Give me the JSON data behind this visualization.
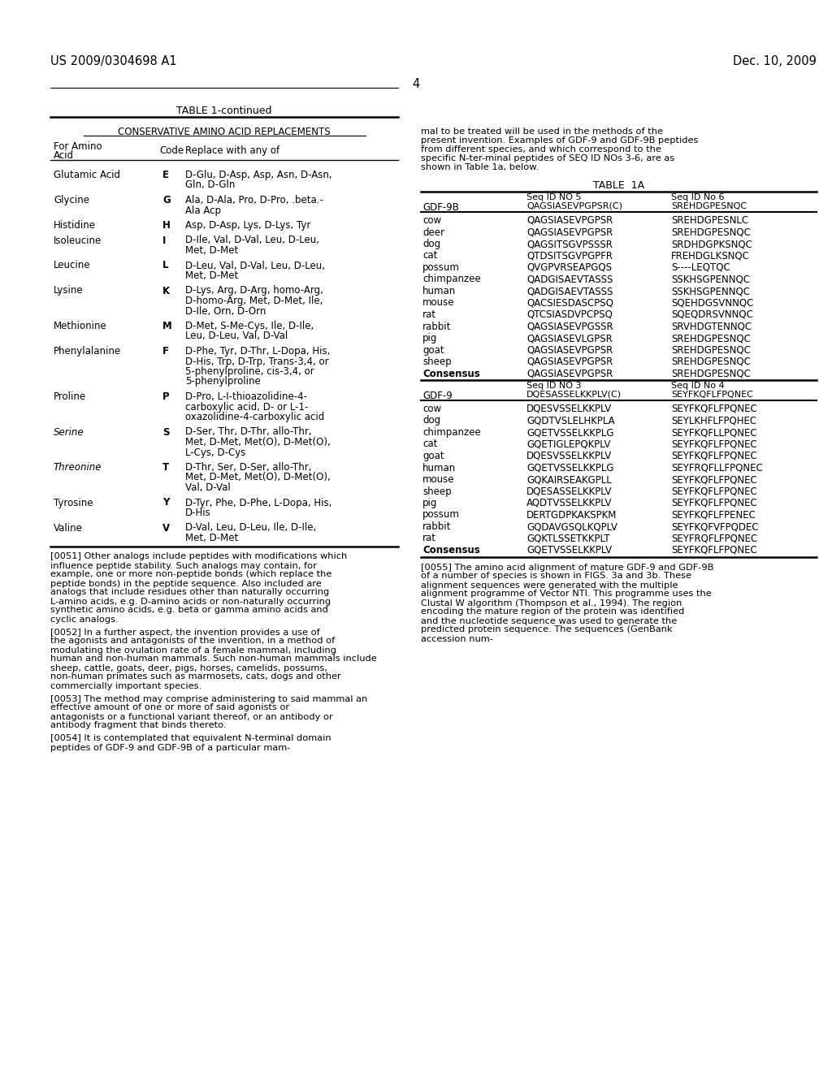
{
  "header_left": "US 2009/0304698 A1",
  "header_right": "Dec. 10, 2009",
  "page_num": "4",
  "bg_color": "#ffffff",
  "table1_title": "TABLE 1-continued",
  "table1_subtitle": "CONSERVATIVE AMINO ACID REPLACEMENTS",
  "table1_rows": [
    [
      "Glutamic Acid",
      "E",
      "D-Glu, D-Asp, Asp, Asn, D-Asn,\nGln, D-Gln"
    ],
    [
      "Glycine",
      "G",
      "Ala, D-Ala, Pro, D-Pro, .beta.-\nAla Acp"
    ],
    [
      "Histidine",
      "H",
      "Asp, D-Asp, Lys, D-Lys, Tyr"
    ],
    [
      "Isoleucine",
      "I",
      "D-Ile, Val, D-Val, Leu, D-Leu,\nMet, D-Met"
    ],
    [
      "Leucine",
      "L",
      "D-Leu, Val, D-Val, Leu, D-Leu,\nMet, D-Met"
    ],
    [
      "Lysine",
      "K",
      "D-Lys, Arg, D-Arg, homo-Arg,\nD-homo-Arg, Met, D-Met, Ile,\nD-Ile, Orn, D-Orn"
    ],
    [
      "Methionine",
      "M",
      "D-Met, S-Me-Cys, Ile, D-Ile,\nLeu, D-Leu, Val, D-Val"
    ],
    [
      "Phenylalanine",
      "F",
      "D-Phe, Tyr, D-Thr, L-Dopa, His,\nD-His, Trp, D-Trp, Trans-3,4, or\n5-phenylproline, cis-3,4, or\n5-phenylproline"
    ],
    [
      "Proline",
      "P",
      "D-Pro, L-I-thioazolidine-4-\ncarboxylic acid, D- or L-1-\noxazolidine-4-carboxylic acid"
    ],
    [
      "Serine",
      "S",
      "D-Ser, Thr, D-Thr, allo-Thr,\nMet, D-Met, Met(O), D-Met(O),\nL-Cys, D-Cys"
    ],
    [
      "Threonine",
      "T",
      "D-Thr, Ser, D-Ser, allo-Thr,\nMet, D-Met, Met(O), D-Met(O),\nVal, D-Val"
    ],
    [
      "Tyrosine",
      "Y",
      "D-Tyr, Phe, D-Phe, L-Dopa, His,\nD-His"
    ],
    [
      "Valine",
      "V",
      "D-Val, Leu, D-Leu, Ile, D-Ile,\nMet, D-Met"
    ]
  ],
  "italic_amino": [
    "Serine",
    "Threonine"
  ],
  "para_0051": "[0051]  Other analogs include peptides with modifications which influence peptide stability. Such analogs may contain, for example, one or more non-peptide bonds (which replace the peptide bonds) in the peptide sequence. Also included are analogs that include residues other than naturally occurring L-amino acids, e.g. D-amino acids or non-naturally occurring synthetic amino acids, e.g. beta or gamma amino acids and cyclic analogs.",
  "para_0052": "[0052]  In a further aspect, the invention provides a use of the agonists and antagonists of the invention, in a method of modulating the ovulation rate of a female mammal, including human and non-human mammals. Such non-human mammals include sheep, cattle, goats, deer, pigs, horses, camelids, possums, non-human primates such as marmosets, cats, dogs and other commercially important species.",
  "para_0053": "[0053]  The method may comprise administering to said mammal an effective amount of one or more of said agonists or antagonists or a functional variant thereof, or an antibody or antibody fragment that binds thereto.",
  "para_0054": "[0054]  It is contemplated that equivalent N-terminal domain peptides of GDF-9 and GDF-9B of a particular mam-",
  "right_para_top": "mal to be treated will be used in the methods of the present invention. Examples of GDF-9 and GDF-9B peptides from different species, and which correspond to the specific N-ter-minal peptides of SEQ ID NOs 3-6, are as shown in Table 1a, below.",
  "table1a_title": "TABLE  1A",
  "t1a_gdf9b_label": "GDF-9B",
  "t1a_gdf9b_hdr2": "Seq ID NO 5",
  "t1a_gdf9b_hdr2b": "QAGSIASEVPGPSR(C)",
  "t1a_gdf9b_hdr3": "Seq ID No 6",
  "t1a_gdf9b_hdr3b": "SREHDGPESNQC",
  "table1a_gdf9b_rows": [
    [
      "cow",
      "QAGSIASEVPGPSR",
      "SREHDGPESNLC"
    ],
    [
      "deer",
      "QAGSIASEVPGPSR",
      "SREHDGPESNQC"
    ],
    [
      "dog",
      "QAGSITSGVPSSSR",
      "SRDHDGPKSNQC"
    ],
    [
      "cat",
      "QTDSITSGVPGPFR",
      "FREHDGLKSNQC"
    ],
    [
      "possum",
      "QVGPVRSEAPGQS",
      "S----LEQTQC"
    ],
    [
      "chimpanzee",
      "QADGISAEVTASSS",
      "SSKHSGPENNQC"
    ],
    [
      "human",
      "QADGISAEVTASSS",
      "SSKHSGPENNQC"
    ],
    [
      "mouse",
      "QACSIESDASCPSQ",
      "SQEHDGSVNNQC"
    ],
    [
      "rat",
      "QTCSIASDVPCPSQ",
      "SQEQDRSVNNQC"
    ],
    [
      "rabbit",
      "QAGSIASEVPGSSR",
      "SRVHDGTENNQC"
    ],
    [
      "pig",
      "QAGSIASEVLGPSR",
      "SREHDGPESNQC"
    ],
    [
      "goat",
      "QAGSIASEVPGPSR",
      "SREHDGPESNQC"
    ],
    [
      "sheep",
      "QAGSIASEVPGPSR",
      "SREHDGPESNQC"
    ],
    [
      "Consensus",
      "QAGSIASEVPGPSR",
      "SREHDGPESNQC"
    ]
  ],
  "t1a_gdf9_label": "GDF-9",
  "t1a_gdf9_hdr2": "Seq ID NO 3",
  "t1a_gdf9_hdr2b": "DQESASSELKKPLV(C)",
  "t1a_gdf9_hdr3": "Seq ID No 4",
  "t1a_gdf9_hdr3b": "SEYFKQFLFPQNEC",
  "table1a_gdf9_rows": [
    [
      "cow",
      "DQESVSSELKKPLV",
      "SEYFKQFLFPQNEC"
    ],
    [
      "dog",
      "GQDTVSLELHKPLA",
      "SEYLKHFLFPQHEC"
    ],
    [
      "chimpanzee",
      "GQETVSSELKKPLG",
      "SEYFKQFLLPQNEC"
    ],
    [
      "cat",
      "GQETIGLEPQKPLV",
      "SEYFKQFLFPQNEC"
    ],
    [
      "goat",
      "DQESVSSELKKPLV",
      "SEYFKQFLFPQNEC"
    ],
    [
      "human",
      "GQETVSSELKKPLG",
      "SEYFRQFLLFPQNEC"
    ],
    [
      "mouse",
      "GQKAIRSEAKGPLL",
      "SEYFKQFLFPQNEC"
    ],
    [
      "sheep",
      "DQESASSELKKPLV",
      "SEYFKQFLFPQNEC"
    ],
    [
      "pig",
      "AQDTVSSELKKPLV",
      "SEYFKQFLFPQNEC"
    ],
    [
      "possum",
      "DERTGDPKAKSPKM",
      "SEYFKQFLFPENEC"
    ],
    [
      "rabbit",
      "GQDAVGSQLKQPLV",
      "SEYFKQFVFPQDEC"
    ],
    [
      "rat",
      "GQKTLSSETKKPLT",
      "SEYFRQFLFPQNEC"
    ],
    [
      "Consensus",
      "GQETVSSELKKPLV",
      "SEYFKQFLFPQNEC"
    ]
  ],
  "right_para_0055": "[0055]  The amino acid alignment of mature GDF-9 and GDF-9B of a number of species is shown in FIGS. 3a and 3b. These alignment sequences were generated with the multiple alignment programme of Vector NTI. This programme uses the Clustal W algorithm (Thompson et al., 1994). The region encoding the mature region of the protein was identified and the nucleotide sequence was used to generate the predicted protein sequence. The sequences (GenBank accession num-"
}
